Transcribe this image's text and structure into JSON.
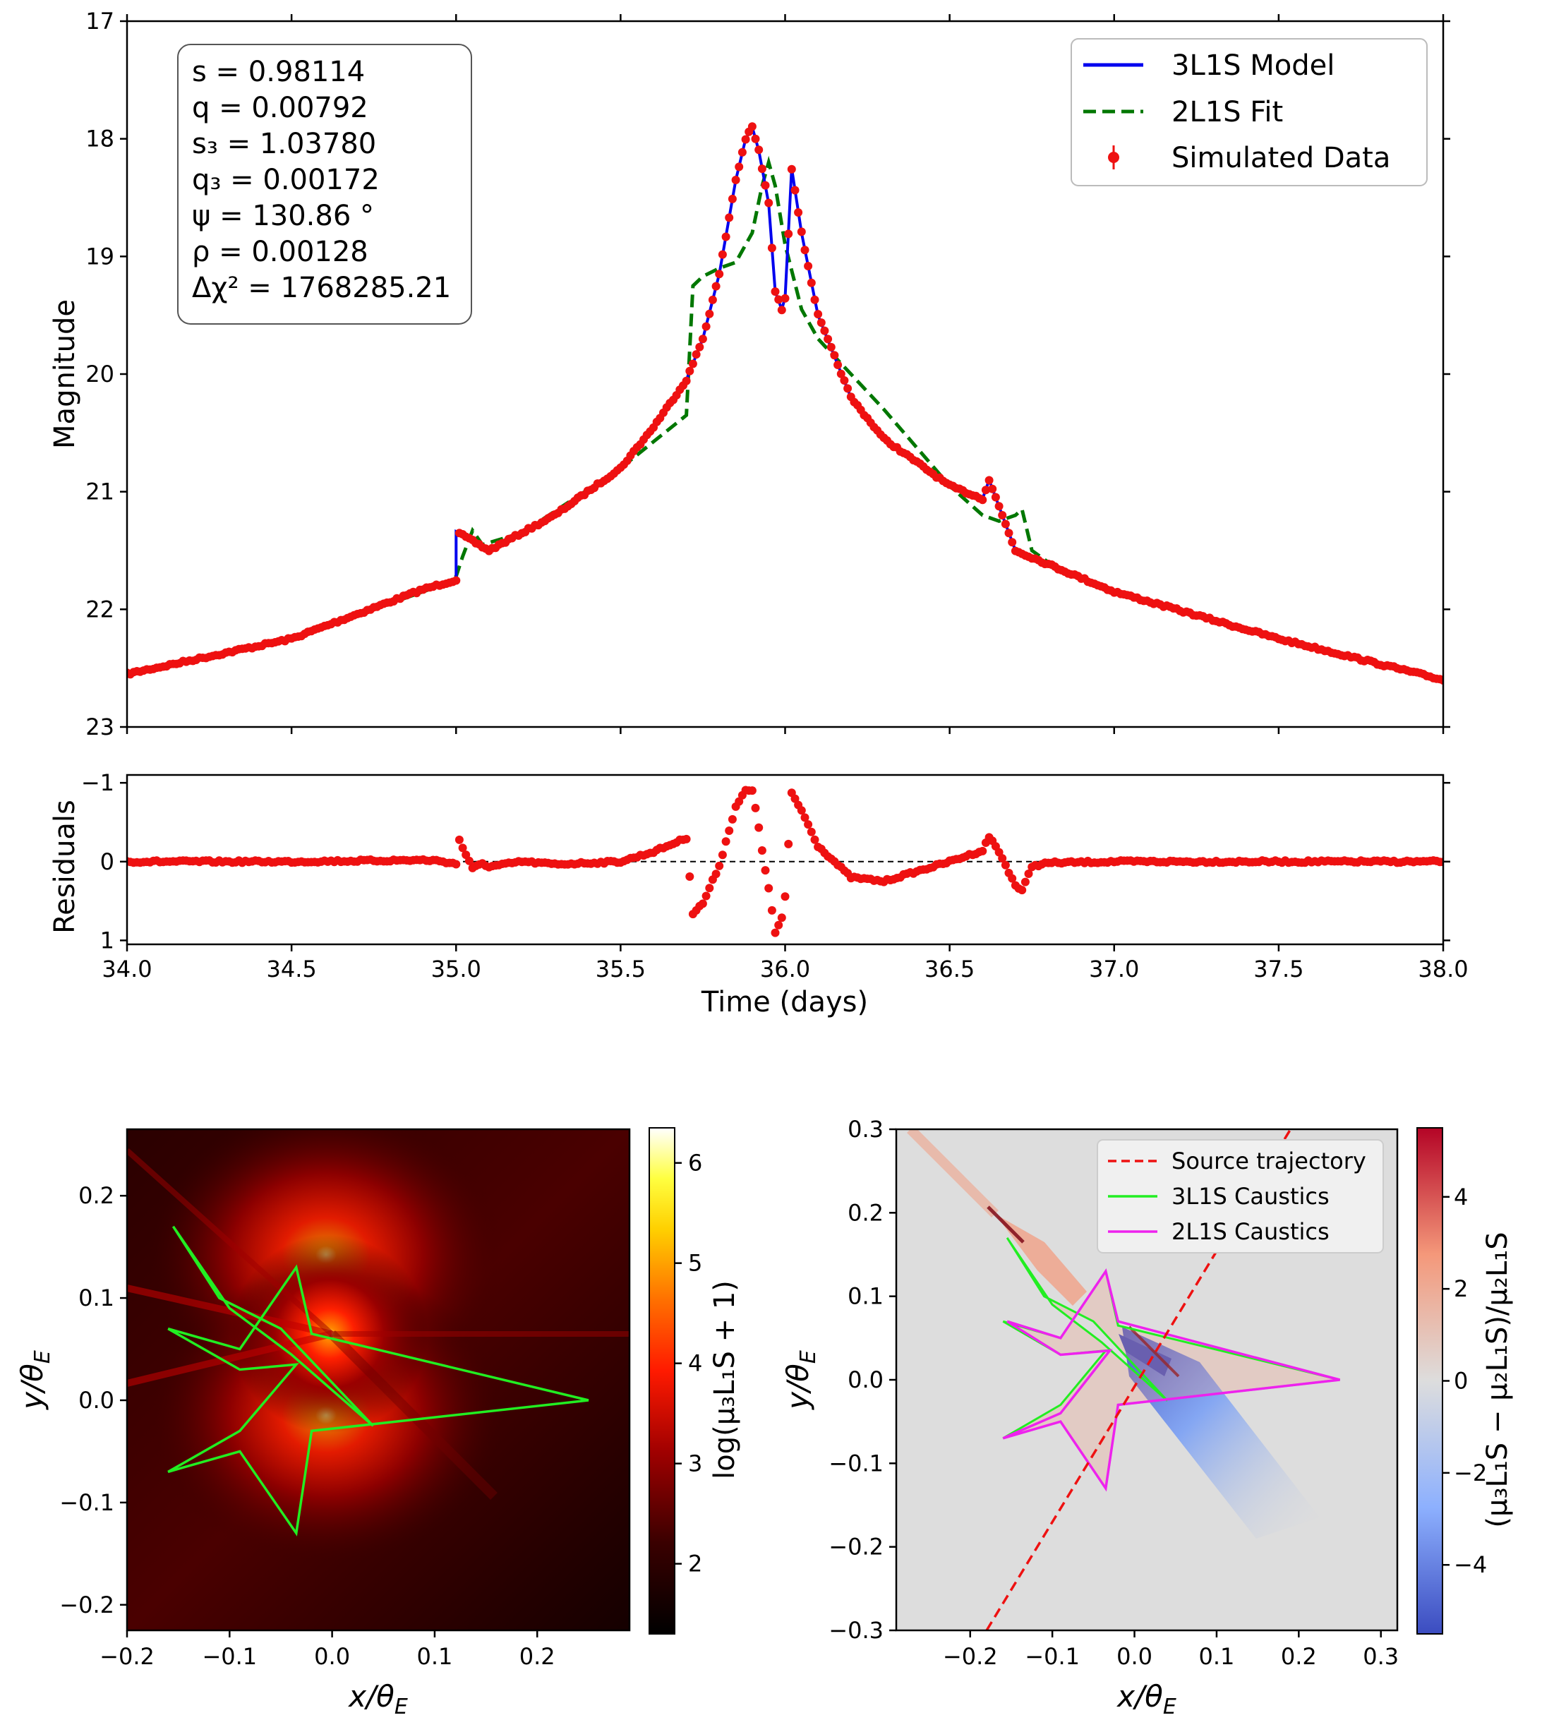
{
  "chart_data": [
    {
      "id": "lightcurve",
      "type": "line",
      "xlabel": "",
      "ylabel": "Magnitude",
      "xlim": [
        34.0,
        38.0
      ],
      "ylim": [
        23,
        17
      ],
      "y_inverted": true,
      "yticks": [
        "17",
        "18",
        "19",
        "20",
        "21",
        "22",
        "23"
      ],
      "legend_position": "top-right",
      "legend": [
        "3L1S Model",
        "2L1S Fit",
        "Simulated Data"
      ],
      "series_colors": {
        "model3": "#0000ee",
        "fit2": "#007700",
        "data": "#ee1111"
      },
      "param_box": {
        "s": "s = 0.98114",
        "q": "q = 0.00792",
        "s3": "s₃ = 1.03780",
        "q3": "q₃ = 0.00172",
        "psi": "ψ = 130.86 °",
        "rho": "ρ = 0.00128",
        "dchi2": "Δχ² = 1768285.21"
      },
      "series": [
        {
          "name": "3L1S Model",
          "style": "solid",
          "x": [
            34.0,
            34.5,
            34.9,
            35.0,
            35.0,
            35.1,
            35.3,
            35.5,
            35.6,
            35.7,
            35.75,
            35.8,
            35.85,
            35.88,
            35.9,
            35.92,
            35.95,
            35.97,
            35.99,
            36.0,
            36.02,
            36.05,
            36.1,
            36.2,
            36.3,
            36.5,
            36.6,
            36.62,
            36.7,
            37.0,
            37.5,
            38.0
          ],
          "y": [
            22.55,
            22.25,
            21.83,
            21.75,
            21.34,
            21.5,
            21.2,
            20.8,
            20.45,
            20.05,
            19.7,
            19.15,
            18.35,
            18.0,
            17.9,
            18.1,
            18.55,
            19.3,
            19.45,
            19.35,
            18.25,
            18.8,
            19.5,
            20.2,
            20.55,
            20.95,
            21.06,
            20.9,
            21.5,
            21.85,
            22.25,
            22.6
          ]
        },
        {
          "name": "2L1S Fit",
          "style": "dashed",
          "x": [
            34.0,
            34.5,
            34.95,
            35.0,
            35.02,
            35.05,
            35.08,
            35.2,
            35.5,
            35.7,
            35.72,
            35.75,
            35.8,
            35.85,
            35.9,
            35.93,
            35.95,
            35.97,
            36.0,
            36.05,
            36.1,
            36.15,
            36.3,
            36.5,
            36.6,
            36.65,
            36.7,
            36.72,
            36.75,
            36.8,
            37.0,
            37.5,
            38.0
          ],
          "y": [
            22.55,
            22.25,
            21.8,
            21.72,
            21.55,
            21.33,
            21.45,
            21.35,
            20.8,
            20.35,
            19.25,
            19.17,
            19.1,
            19.05,
            18.8,
            18.4,
            18.2,
            18.4,
            18.9,
            19.45,
            19.7,
            19.85,
            20.3,
            20.95,
            21.2,
            21.25,
            21.2,
            21.15,
            21.5,
            21.6,
            21.85,
            22.25,
            22.6
          ]
        }
      ]
    },
    {
      "id": "residuals",
      "type": "scatter",
      "xlabel": "Time (days)",
      "ylabel": "Residuals",
      "xlim": [
        34.0,
        38.0
      ],
      "ylim": [
        1.05,
        -1.1
      ],
      "y_inverted": true,
      "xticks": [
        "34.0",
        "34.5",
        "35.0",
        "35.5",
        "36.0",
        "36.5",
        "37.0",
        "37.5",
        "38.0"
      ],
      "yticks": [
        "−1",
        "0",
        "1"
      ],
      "baseline": 0
    },
    {
      "id": "mag3",
      "type": "heatmap",
      "xlabel": "x/θ",
      "xlabel_sub": "E",
      "ylabel": "y/θ",
      "ylabel_sub": "E",
      "xlim": [
        -0.2,
        0.29
      ],
      "ylim": [
        -0.225,
        0.265
      ],
      "xticks": [
        "−0.2",
        "−0.1",
        "0.0",
        "0.1",
        "0.2"
      ],
      "yticks": [
        "−0.2",
        "−0.1",
        "0.0",
        "0.1",
        "0.2"
      ],
      "colorbar_label": "log(μ₃L₁S + 1)",
      "colorbar_range": [
        1.3,
        6.35
      ],
      "colorbar_ticks": [
        "2",
        "3",
        "4",
        "5",
        "6"
      ],
      "caustic_color": "#22ee22",
      "caustics": [
        [
          [
            -0.155,
            0.17
          ],
          [
            -0.1,
            0.09
          ],
          [
            -0.04,
            0.045
          ],
          [
            0.04,
            -0.025
          ],
          [
            -0.05,
            0.07
          ],
          [
            -0.11,
            0.1
          ],
          [
            -0.155,
            0.17
          ]
        ],
        [
          [
            -0.16,
            0.07
          ],
          [
            -0.09,
            0.05
          ],
          [
            -0.035,
            0.13
          ],
          [
            -0.02,
            0.065
          ],
          [
            0.25,
            0.0
          ],
          [
            -0.02,
            -0.03
          ],
          [
            -0.035,
            -0.13
          ],
          [
            -0.09,
            -0.05
          ],
          [
            -0.16,
            -0.07
          ],
          [
            -0.09,
            -0.03
          ],
          [
            -0.035,
            0.035
          ],
          [
            -0.09,
            0.03
          ],
          [
            -0.16,
            0.07
          ]
        ]
      ]
    },
    {
      "id": "magdiff",
      "type": "heatmap",
      "xlabel": "x/θ",
      "xlabel_sub": "E",
      "ylabel": "y/θ",
      "ylabel_sub": "E",
      "xlim": [
        -0.29,
        0.32
      ],
      "ylim": [
        -0.3,
        0.3
      ],
      "xticks": [
        "−0.2",
        "−0.1",
        "0.0",
        "0.1",
        "0.2",
        "0.3"
      ],
      "yticks": [
        "−0.3",
        "−0.2",
        "−0.1",
        "0.0",
        "0.1",
        "0.2",
        "0.3"
      ],
      "colorbar_label": "(μ₃L₁S − μ₂L₁S)/μ₂L₁S",
      "colorbar_range": [
        -5.5,
        5.5
      ],
      "colorbar_ticks": [
        "−4",
        "−2",
        "0",
        "2",
        "4"
      ],
      "legend_position": "top-right",
      "legend": [
        "Source trajectory",
        "3L1S Caustics",
        "2L1S Caustics"
      ],
      "trajectory": [
        [
          -0.18,
          -0.3
        ],
        [
          0.19,
          0.3
        ]
      ]
    }
  ]
}
